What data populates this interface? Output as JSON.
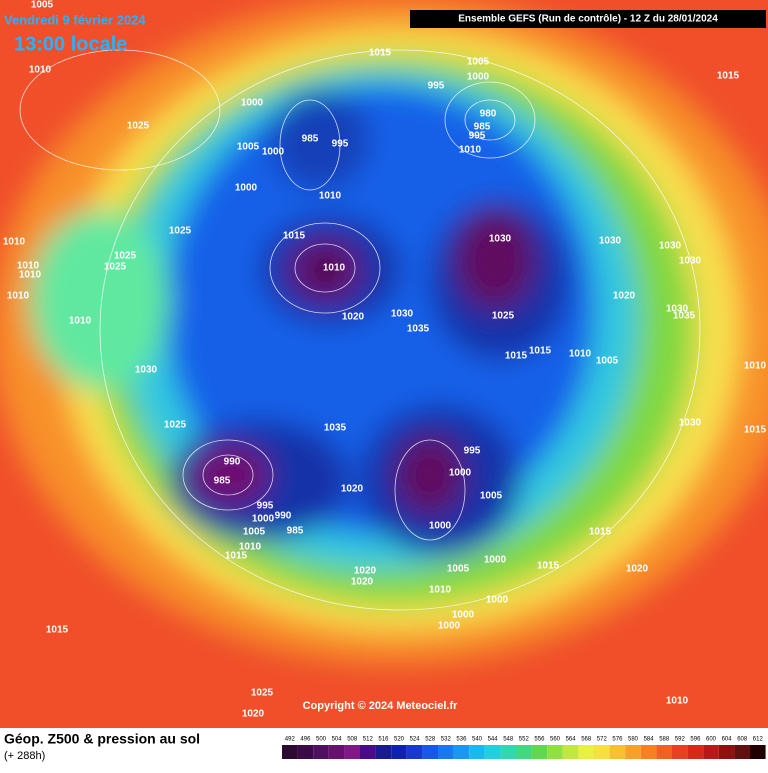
{
  "header": {
    "date": "Vendredi 9 février 2024",
    "time": "13:00 locale",
    "run": "Ensemble GEFS  (Run de contrôle)  -  12 Z du 28/01/2024"
  },
  "copyright": "Copyright © 2024 Meteociel.fr",
  "footer": {
    "title": "Géop. Z500 & pression au sol",
    "lead": "(+ 288h)"
  },
  "legend_levels": [
    "492",
    "496",
    "500",
    "504",
    "508",
    "512",
    "516",
    "520",
    "524",
    "528",
    "532",
    "536",
    "540",
    "544",
    "548",
    "552",
    "556",
    "560",
    "564",
    "568",
    "572",
    "576",
    "580",
    "584",
    "588",
    "592",
    "596",
    "600",
    "604",
    "608",
    "612"
  ],
  "isobar_labels": [
    "1005",
    "1010",
    "1025",
    "1015",
    "1005",
    "1000",
    "995",
    "1015",
    "1000",
    "985",
    "995",
    "1005",
    "1000",
    "980",
    "985",
    "995",
    "1010",
    "1000",
    "1010",
    "1025",
    "1015",
    "1030",
    "1030",
    "1030",
    "1030",
    "1010",
    "1010",
    "1010",
    "1010",
    "1025",
    "1025",
    "1010",
    "1020",
    "1030",
    "1035",
    "1020",
    "1030",
    "1035",
    "1025",
    "1010",
    "1015",
    "1015",
    "1010",
    "1005",
    "1030",
    "1010",
    "1025",
    "1035",
    "1030",
    "1015",
    "990",
    "995",
    "1000",
    "985",
    "1020",
    "1005",
    "995",
    "1000",
    "990",
    "1000",
    "1005",
    "985",
    "1015",
    "1010",
    "1015",
    "1000",
    "1020",
    "1005",
    "1015",
    "1020",
    "1020",
    "1010",
    "1000",
    "1000",
    "1000",
    "1015",
    "1025",
    "1020",
    "1010"
  ]
}
